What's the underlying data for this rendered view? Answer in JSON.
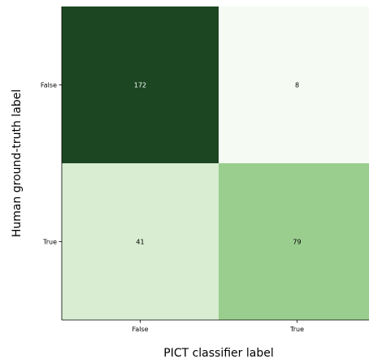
{
  "chart_data": {
    "type": "heatmap",
    "x_categories": [
      "False",
      "True"
    ],
    "y_categories": [
      "False",
      "True"
    ],
    "values": [
      [
        172,
        8
      ],
      [
        41,
        79
      ]
    ],
    "cell_colors": [
      [
        "#1b4621",
        "#f5fbf3"
      ],
      [
        "#d8edd1",
        "#9ace8f"
      ]
    ],
    "cell_text_colors": [
      [
        "#ffffff",
        "#000000"
      ],
      [
        "#000000",
        "#000000"
      ]
    ],
    "xlabel": "PICT classifier label",
    "ylabel": "Human ground-truth label",
    "title": ""
  }
}
